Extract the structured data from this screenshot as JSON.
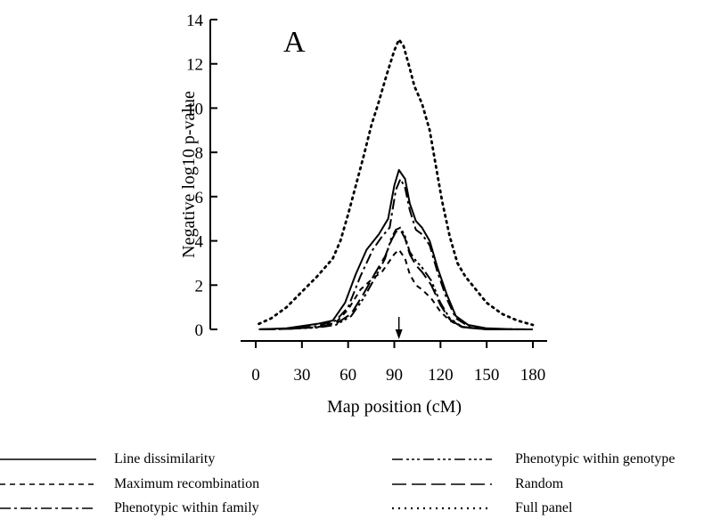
{
  "chart_data": {
    "type": "line",
    "panel_label": "A",
    "xlabel": "Map position (cM)",
    "ylabel": "Negative log10 p-value",
    "xlim": [
      0,
      180
    ],
    "ylim": [
      0,
      14
    ],
    "xticks": [
      0,
      30,
      60,
      90,
      120,
      150,
      180
    ],
    "yticks": [
      0,
      2,
      4,
      6,
      8,
      10,
      12,
      14
    ],
    "grid": false,
    "legend_position": "bottom",
    "annotation": "arrow-at-93",
    "series": [
      {
        "name": "Line dissimilarity",
        "dash": "solid",
        "points": [
          [
            2,
            0
          ],
          [
            20,
            0.05
          ],
          [
            40,
            0.25
          ],
          [
            50,
            0.4
          ],
          [
            58,
            1.2
          ],
          [
            65,
            2.5
          ],
          [
            72,
            3.6
          ],
          [
            80,
            4.3
          ],
          [
            86,
            5.0
          ],
          [
            90,
            6.5
          ],
          [
            93,
            7.2
          ],
          [
            97,
            6.8
          ],
          [
            100,
            5.7
          ],
          [
            104,
            4.9
          ],
          [
            108,
            4.6
          ],
          [
            113,
            4.0
          ],
          [
            118,
            2.8
          ],
          [
            124,
            1.6
          ],
          [
            130,
            0.6
          ],
          [
            138,
            0.2
          ],
          [
            150,
            0.05
          ],
          [
            170,
            0
          ],
          [
            180,
            0
          ]
        ]
      },
      {
        "name": "Maximum recombination",
        "dash": "6,5",
        "points": [
          [
            2,
            0
          ],
          [
            20,
            0.02
          ],
          [
            40,
            0.1
          ],
          [
            52,
            0.3
          ],
          [
            60,
            0.9
          ],
          [
            68,
            1.8
          ],
          [
            76,
            2.3
          ],
          [
            82,
            2.6
          ],
          [
            86,
            3.0
          ],
          [
            90,
            3.4
          ],
          [
            93,
            3.6
          ],
          [
            97,
            3.2
          ],
          [
            100,
            2.5
          ],
          [
            104,
            2.0
          ],
          [
            108,
            1.8
          ],
          [
            114,
            1.4
          ],
          [
            120,
            0.8
          ],
          [
            126,
            0.4
          ],
          [
            134,
            0.1
          ],
          [
            150,
            0
          ],
          [
            180,
            0
          ]
        ]
      },
      {
        "name": "Phenotypic within family",
        "dash": "12,4,3,4",
        "points": [
          [
            2,
            0
          ],
          [
            20,
            0.03
          ],
          [
            40,
            0.15
          ],
          [
            52,
            0.4
          ],
          [
            60,
            1.0
          ],
          [
            68,
            2.4
          ],
          [
            76,
            3.6
          ],
          [
            82,
            4.2
          ],
          [
            87,
            4.6
          ],
          [
            91,
            6.3
          ],
          [
            94,
            6.8
          ],
          [
            97,
            6.4
          ],
          [
            100,
            5.4
          ],
          [
            104,
            4.5
          ],
          [
            108,
            4.3
          ],
          [
            113,
            3.8
          ],
          [
            118,
            2.6
          ],
          [
            124,
            1.4
          ],
          [
            130,
            0.5
          ],
          [
            138,
            0.15
          ],
          [
            150,
            0.03
          ],
          [
            180,
            0
          ]
        ]
      },
      {
        "name": "Phenotypic within genotype",
        "dash": "12,4,3,3,3,3,3,4",
        "points": [
          [
            2,
            0
          ],
          [
            20,
            0.02
          ],
          [
            40,
            0.08
          ],
          [
            52,
            0.2
          ],
          [
            62,
            0.6
          ],
          [
            70,
            1.4
          ],
          [
            78,
            2.4
          ],
          [
            84,
            3.2
          ],
          [
            88,
            4.1
          ],
          [
            91,
            4.5
          ],
          [
            94,
            4.6
          ],
          [
            97,
            4.2
          ],
          [
            100,
            3.5
          ],
          [
            104,
            3.1
          ],
          [
            108,
            2.8
          ],
          [
            114,
            2.2
          ],
          [
            120,
            1.2
          ],
          [
            126,
            0.5
          ],
          [
            134,
            0.12
          ],
          [
            150,
            0
          ],
          [
            180,
            0
          ]
        ]
      },
      {
        "name": "Random",
        "dash": "16,6",
        "points": [
          [
            2,
            0
          ],
          [
            20,
            0.02
          ],
          [
            40,
            0.1
          ],
          [
            52,
            0.25
          ],
          [
            62,
            0.7
          ],
          [
            70,
            1.6
          ],
          [
            78,
            2.6
          ],
          [
            84,
            3.3
          ],
          [
            88,
            4.0
          ],
          [
            91,
            4.4
          ],
          [
            94,
            4.5
          ],
          [
            97,
            4.1
          ],
          [
            100,
            3.4
          ],
          [
            104,
            2.9
          ],
          [
            108,
            2.6
          ],
          [
            114,
            2.0
          ],
          [
            120,
            1.1
          ],
          [
            126,
            0.45
          ],
          [
            134,
            0.1
          ],
          [
            150,
            0
          ],
          [
            180,
            0
          ]
        ]
      },
      {
        "name": "Full panel",
        "dash": "2,5",
        "points": [
          [
            2,
            0.25
          ],
          [
            10,
            0.5
          ],
          [
            20,
            1.0
          ],
          [
            30,
            1.7
          ],
          [
            40,
            2.4
          ],
          [
            50,
            3.2
          ],
          [
            55,
            4.0
          ],
          [
            60,
            5.2
          ],
          [
            65,
            6.5
          ],
          [
            70,
            7.8
          ],
          [
            75,
            9.2
          ],
          [
            80,
            10.3
          ],
          [
            85,
            11.5
          ],
          [
            90,
            12.6
          ],
          [
            93,
            13.1
          ],
          [
            96,
            12.8
          ],
          [
            100,
            11.8
          ],
          [
            103,
            11.0
          ],
          [
            108,
            10.2
          ],
          [
            113,
            9.0
          ],
          [
            117,
            7.4
          ],
          [
            121,
            5.8
          ],
          [
            126,
            4.2
          ],
          [
            131,
            3.0
          ],
          [
            136,
            2.4
          ],
          [
            143,
            1.8
          ],
          [
            150,
            1.2
          ],
          [
            160,
            0.7
          ],
          [
            170,
            0.4
          ],
          [
            180,
            0.2
          ]
        ]
      }
    ]
  }
}
